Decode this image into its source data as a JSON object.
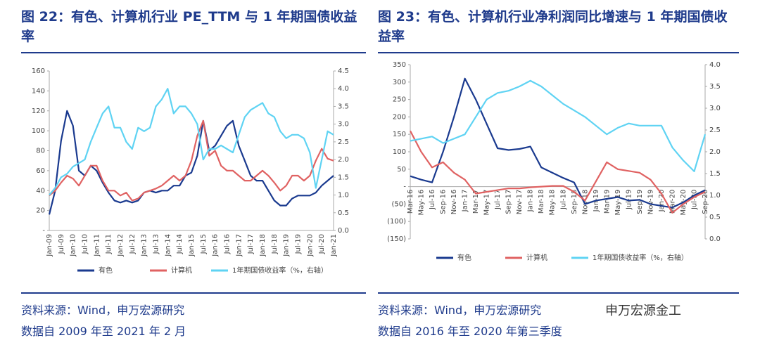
{
  "chart_data": [
    {
      "type": "line",
      "title": "图 22：有色、计算机行业 PE_TTM 与 1 年期国债收益率",
      "source": "资料来源：Wind，申万宏源研究",
      "note": "数据自 2009 年至 2021 年 2 月",
      "categories": [
        "Jan-09",
        null,
        "Jul-09",
        null,
        "Jan-10",
        null,
        "Jul-10",
        null,
        "Jan-11",
        null,
        "Jul-11",
        null,
        "Jan-12",
        null,
        "Jul-12",
        null,
        "Jan-13",
        null,
        "Jul-13",
        null,
        "Jan-14",
        null,
        "Jul-14",
        null,
        "Jan-15",
        null,
        "Jul-15",
        null,
        "Jan-16",
        null,
        "Jul-16",
        null,
        "Jan-17",
        null,
        "Jul-17",
        null,
        "Jan-18",
        null,
        "Jul-18",
        null,
        "Jan-19",
        null,
        "Jul-19",
        null,
        "Jan-20",
        null,
        "Jul-20",
        null,
        "Jan-21"
      ],
      "ylim": [
        0,
        160
      ],
      "yticks": [
        {
          "value": 0,
          "label": "-"
        },
        20,
        40,
        60,
        80,
        100,
        120,
        140,
        160
      ],
      "y2lim": [
        0,
        4.5
      ],
      "y2ticks": [
        {
          "value": 0,
          "label": "0.0"
        },
        0.5,
        {
          "value": 1,
          "label": "1.0"
        },
        1.5,
        {
          "value": 2,
          "label": "2.0"
        },
        2.5,
        {
          "value": 3,
          "label": "3.0"
        },
        3.5,
        {
          "value": 4,
          "label": "4.0"
        },
        4.5
      ],
      "series": [
        {
          "name": "有色",
          "color": "#1a3a8f",
          "values": [
            16,
            40,
            90,
            120,
            105,
            60,
            55,
            65,
            60,
            48,
            38,
            30,
            28,
            30,
            28,
            30,
            38,
            40,
            38,
            40,
            40,
            45,
            45,
            55,
            58,
            75,
            110,
            80,
            85,
            95,
            105,
            110,
            85,
            70,
            55,
            50,
            50,
            40,
            30,
            25,
            25,
            32,
            35,
            35,
            35,
            38,
            45,
            50,
            55
          ]
        },
        {
          "name": "计算机",
          "color": "#e06262",
          "values": [
            35,
            40,
            48,
            55,
            52,
            45,
            55,
            65,
            65,
            50,
            40,
            40,
            35,
            38,
            30,
            32,
            38,
            40,
            42,
            45,
            50,
            55,
            50,
            55,
            70,
            95,
            110,
            75,
            80,
            65,
            60,
            60,
            55,
            50,
            50,
            55,
            60,
            55,
            48,
            40,
            45,
            55,
            55,
            50,
            55,
            70,
            82,
            72,
            70
          ]
        },
        {
          "name": "1年期国债收益率（%，右轴）",
          "color": "#5fd3f3",
          "axis": "y2",
          "values": [
            1.0,
            1.2,
            1.5,
            1.6,
            1.8,
            1.9,
            2.0,
            2.5,
            2.9,
            3.3,
            3.5,
            2.9,
            2.9,
            2.5,
            2.3,
            2.9,
            2.8,
            2.9,
            3.5,
            3.7,
            4.0,
            3.3,
            3.5,
            3.5,
            3.3,
            3.0,
            2.0,
            2.3,
            2.3,
            2.4,
            2.3,
            2.2,
            2.7,
            3.2,
            3.4,
            3.5,
            3.6,
            3.3,
            3.2,
            2.8,
            2.6,
            2.7,
            2.7,
            2.6,
            2.2,
            1.2,
            2.0,
            2.8,
            2.7
          ]
        }
      ]
    },
    {
      "type": "line",
      "title": "图 23：有色、计算机行业净利润同比增速与 1 年期国债收益率",
      "source": "资料来源：Wind，申万宏源研究",
      "note": "数据自 2016 年至 2020 年第三季度",
      "categories": [
        "Mar-16",
        "May-16",
        "Jul-16",
        "Sep-16",
        "Nov-16",
        "Jan-17",
        "Mar-17",
        "May-17",
        "Jul-17",
        "Sep-17",
        "Nov-17",
        "Jan-18",
        "Mar-18",
        "May-18",
        "Jul-18",
        "Sep-18",
        "Nov-18",
        "Jan-19",
        "Mar-19",
        "May-19",
        "Jul-19",
        "Sep-19",
        "Nov-19",
        "Jan-20",
        "Mar-20",
        "May-20",
        "Jul-20",
        "Sep-20"
      ],
      "ylim": [
        -150,
        350
      ],
      "yticks": [
        {
          "value": -150,
          "label": "(150)"
        },
        {
          "value": -100,
          "label": "(100)"
        },
        {
          "value": -50,
          "label": "(50)"
        },
        {
          "value": 0,
          "label": "-"
        },
        50,
        100,
        150,
        200,
        250,
        300,
        350
      ],
      "y2lim": [
        0,
        4
      ],
      "y2ticks": [
        {
          "value": 0,
          "label": "0.0"
        },
        0.5,
        {
          "value": 1,
          "label": "1.0"
        },
        1.5,
        {
          "value": 2,
          "label": "2.0"
        },
        2.5,
        {
          "value": 3,
          "label": "3.0"
        },
        3.5,
        {
          "value": 4,
          "label": "4.0"
        }
      ],
      "series": [
        {
          "name": "有色",
          "color": "#1a3a8f",
          "values": [
            30,
            20,
            12,
            100,
            200,
            310,
            250,
            180,
            110,
            105,
            108,
            115,
            55,
            40,
            25,
            12,
            -50,
            -40,
            -35,
            -30,
            -40,
            -38,
            -50,
            -55,
            -60,
            -45,
            -25,
            -10
          ]
        },
        {
          "name": "计算机",
          "color": "#e06262",
          "values": [
            160,
            100,
            55,
            70,
            40,
            20,
            -20,
            -15,
            -10,
            -5,
            -5,
            -2,
            0,
            2,
            2,
            -15,
            -40,
            15,
            70,
            50,
            45,
            40,
            20,
            -20,
            -75,
            -50,
            -30,
            -15
          ]
        },
        {
          "name": "1年期国债收益率（%，右轴）",
          "color": "#5fd3f3",
          "axis": "y2",
          "values": [
            2.25,
            2.3,
            2.35,
            2.2,
            2.3,
            2.4,
            2.8,
            3.2,
            3.35,
            3.4,
            3.5,
            3.63,
            3.5,
            3.3,
            3.1,
            2.95,
            2.8,
            2.6,
            2.4,
            2.55,
            2.65,
            2.6,
            2.6,
            2.6,
            2.1,
            1.8,
            1.55,
            2.4
          ]
        }
      ]
    }
  ],
  "watermark": "申万宏源金工"
}
